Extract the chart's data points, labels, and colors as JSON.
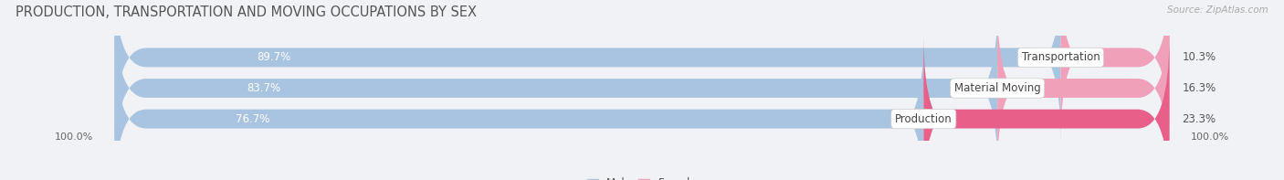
{
  "title": "PRODUCTION, TRANSPORTATION AND MOVING OCCUPATIONS BY SEX",
  "source": "Source: ZipAtlas.com",
  "categories": [
    "Transportation",
    "Material Moving",
    "Production"
  ],
  "male_values": [
    89.7,
    83.7,
    76.7
  ],
  "female_values": [
    10.3,
    16.3,
    23.3
  ],
  "male_color": "#a8c4e0",
  "female_color_top": "#f0a0b8",
  "female_color_bottom": "#e8608a",
  "bar_bg_color": "#e4e8f0",
  "background_color": "#f0f2f5",
  "label_color_male": "#ffffff",
  "title_fontsize": 10.5,
  "source_fontsize": 7.5,
  "bar_label_fontsize": 8.5,
  "category_fontsize": 8.5,
  "legend_fontsize": 8.5,
  "axis_label_fontsize": 8,
  "bar_height": 0.62,
  "left_100_label": "100.0%",
  "right_100_label": "100.0%"
}
